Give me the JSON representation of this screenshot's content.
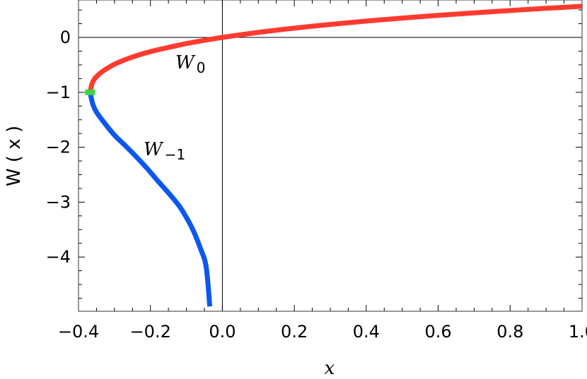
{
  "chart_data": {
    "type": "line",
    "title": "",
    "xlabel": "x",
    "ylabel": "W ( x )",
    "xlim": [
      -0.4,
      1.0
    ],
    "ylim": [
      -5,
      0.6
    ],
    "x_ticks": [
      -0.4,
      -0.2,
      0.0,
      0.2,
      0.4,
      0.6,
      0.8,
      1.0
    ],
    "x_tick_labels": [
      "−0.4",
      "−0.2",
      "0.0",
      "0.2",
      "0.4",
      "0.6",
      "0.8",
      "1.0"
    ],
    "y_ticks": [
      0,
      -1,
      -2,
      -3,
      -4
    ],
    "y_tick_labels": [
      "0",
      "−1",
      "−2",
      "−3",
      "−4"
    ],
    "grid": false,
    "series": [
      {
        "name": "W",
        "name_sub": "0",
        "color": "#ff3b30",
        "x": [
          -0.3679,
          -0.36,
          -0.34,
          -0.3,
          -0.25,
          -0.2,
          -0.15,
          -0.1,
          -0.05,
          0.0,
          0.1,
          0.2,
          0.3,
          0.4,
          0.5,
          0.6,
          0.7,
          0.8,
          0.9,
          1.0
        ],
        "y": [
          -1.0,
          -0.806,
          -0.654,
          -0.489,
          -0.357,
          -0.259,
          -0.183,
          -0.112,
          -0.053,
          0.0,
          0.091,
          0.169,
          0.237,
          0.297,
          0.352,
          0.402,
          0.447,
          0.49,
          0.529,
          0.567
        ]
      },
      {
        "name": "W",
        "name_sub": "−1",
        "color": "#0b57f0",
        "x": [
          -0.3679,
          -0.36,
          -0.35,
          -0.33,
          -0.3,
          -0.27,
          -0.24,
          -0.21,
          -0.18,
          -0.15,
          -0.12,
          -0.1,
          -0.08,
          -0.06,
          -0.045,
          -0.035
        ],
        "y": [
          -1.0,
          -1.22,
          -1.36,
          -1.54,
          -1.78,
          -1.97,
          -2.17,
          -2.38,
          -2.61,
          -2.83,
          -3.07,
          -3.28,
          -3.53,
          -3.86,
          -4.18,
          -4.9
        ]
      }
    ],
    "branch_point": {
      "x": -0.3679,
      "y": -1.0,
      "color": "#3fd33f"
    }
  }
}
